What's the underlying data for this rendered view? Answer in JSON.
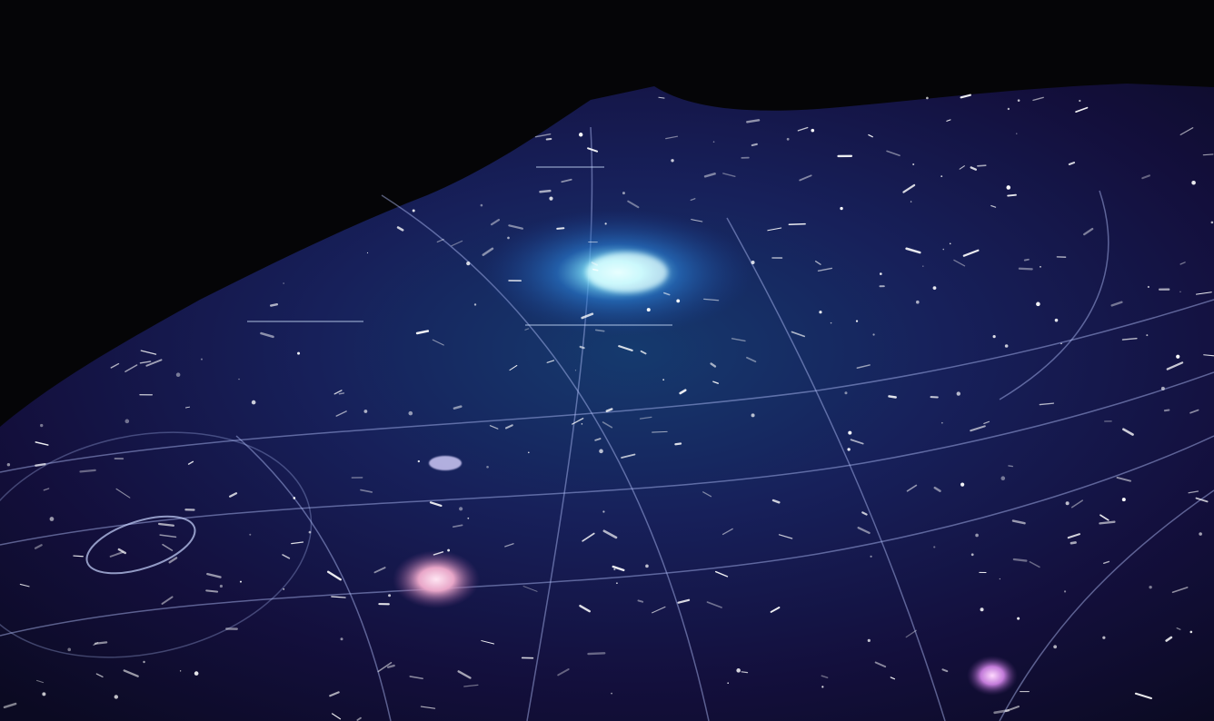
{
  "scene": {
    "subject": "galaxy-map",
    "colors": {
      "background": "#050507",
      "field": "#120f3a",
      "glow_core": "#8ff4ff",
      "glow_mid": "#2a7fd6",
      "nebula_pink": "#e8a6c8",
      "nebula_violet": "#c27bd9",
      "grid_line": "#b7c6ff",
      "star": "#ffffff"
    }
  }
}
